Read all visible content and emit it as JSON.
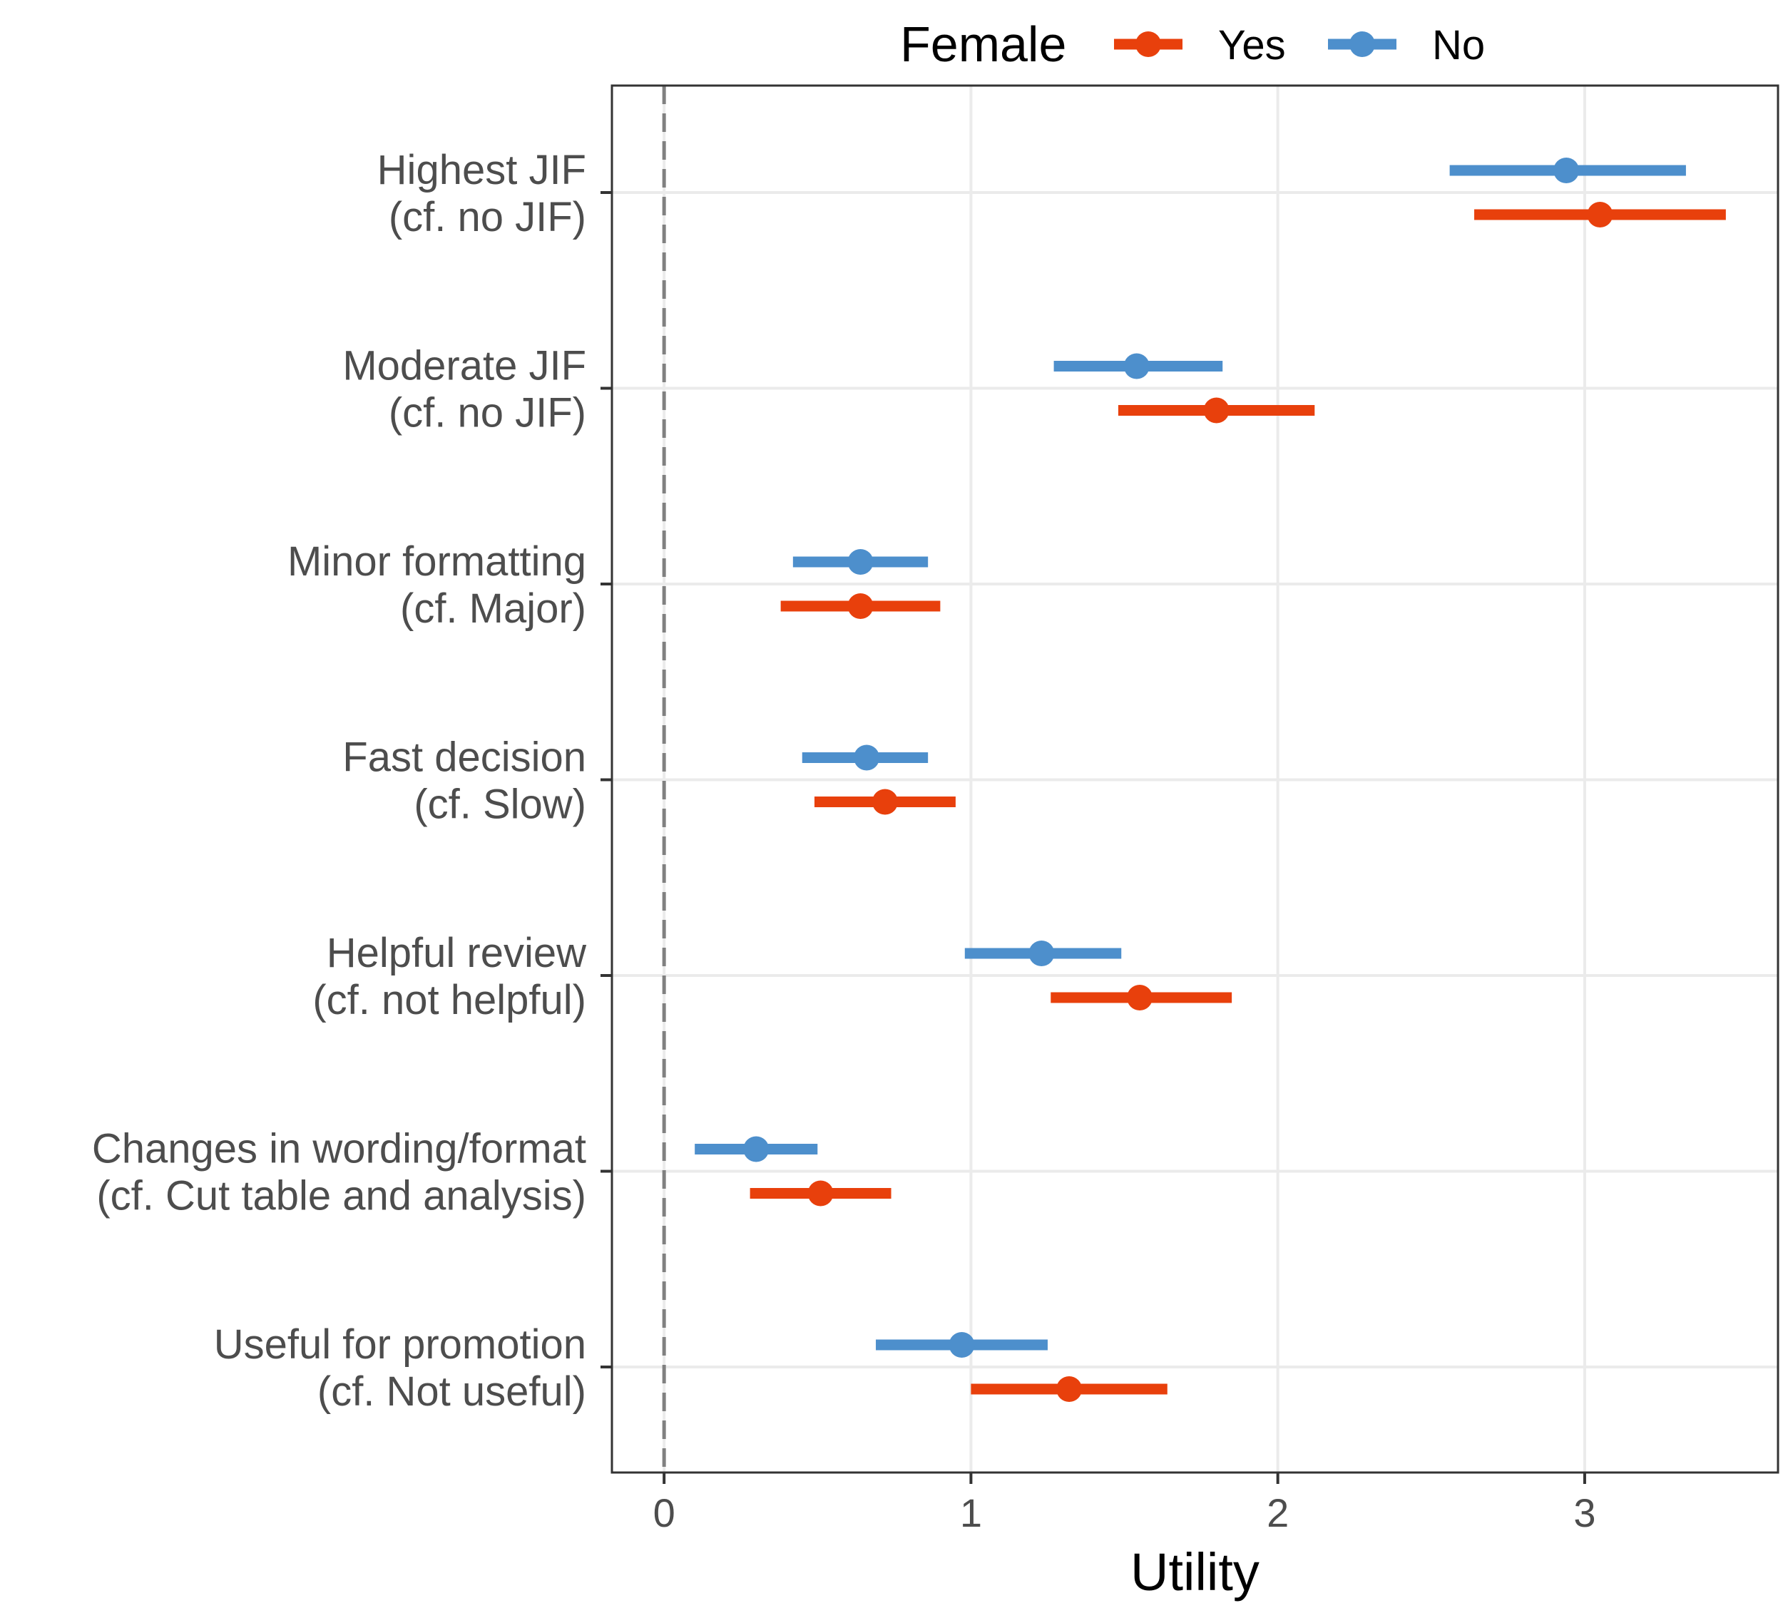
{
  "chart_data": {
    "type": "scatter",
    "subtype": "dot-and-whisker (point estimates with intervals)",
    "title": "",
    "xlabel": "Utility",
    "ylabel": "",
    "xlim": [
      -0.17,
      3.63
    ],
    "x_ticks": [
      0,
      1,
      2,
      3
    ],
    "reference_line": {
      "x": 0,
      "style": "dashed",
      "color": "#808080"
    },
    "grid": true,
    "legend": {
      "title": "Female",
      "position": "top",
      "items": [
        {
          "label": "Yes",
          "color": "#E8400C"
        },
        {
          "label": "No",
          "color": "#4D8FCC"
        }
      ]
    },
    "categories": [
      [
        "Highest JIF",
        "(cf. no JIF)"
      ],
      [
        "Moderate JIF",
        "(cf. no JIF)"
      ],
      [
        "Minor formatting",
        "(cf. Major)"
      ],
      [
        "Fast decision",
        "(cf. Slow)"
      ],
      [
        "Helpful review",
        "(cf. not helpful)"
      ],
      [
        "Changes in wording/format",
        "(cf. Cut table and analysis)"
      ],
      [
        "Useful for promotion",
        "(cf. Not useful)"
      ]
    ],
    "series": [
      {
        "name": "Yes",
        "color": "#E8400C",
        "values": [
          3.05,
          1.8,
          0.64,
          0.72,
          1.55,
          0.51,
          1.32
        ],
        "lower": [
          2.64,
          1.48,
          0.38,
          0.49,
          1.26,
          0.28,
          1.0
        ],
        "upper": [
          3.46,
          2.12,
          0.9,
          0.95,
          1.85,
          0.74,
          1.64
        ]
      },
      {
        "name": "No",
        "color": "#4D8FCC",
        "values": [
          2.94,
          1.54,
          0.64,
          0.66,
          1.23,
          0.3,
          0.97
        ],
        "lower": [
          2.56,
          1.27,
          0.42,
          0.45,
          0.98,
          0.1,
          0.69
        ],
        "upper": [
          3.33,
          1.82,
          0.86,
          0.86,
          1.49,
          0.5,
          1.25
        ]
      }
    ]
  }
}
